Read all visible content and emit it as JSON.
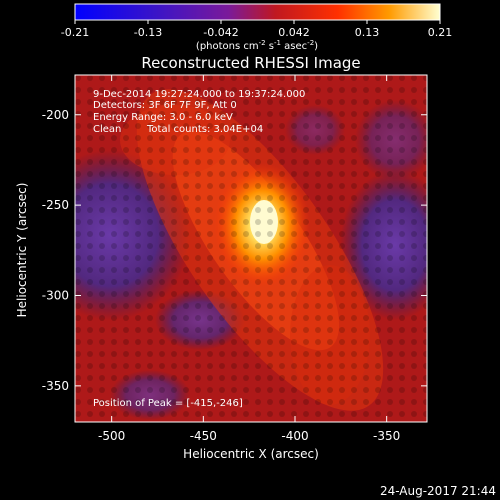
{
  "colorbar": {
    "ticks": [
      "-0.21",
      "-0.13",
      "-0.042",
      "0.042",
      "0.13",
      "0.21"
    ],
    "unit_label": "(photons cm",
    "unit_sup1": "-2",
    "unit_mid": " s",
    "unit_sup2": "-1",
    "unit_end": " asec",
    "unit_sup3": "-2",
    "unit_close": ")",
    "range": [
      -0.21,
      0.21
    ]
  },
  "title": "Reconstructed RHESSI Image",
  "annotations": {
    "time_range": "9-Dec-2014 19:27:24.000 to 19:37:24.000",
    "detectors": "Detectors: 3F 6F 7F 9F, Att 0",
    "energy": "Energy Range: 3.0 - 6.0 keV",
    "clean_label": "Clean",
    "total_counts": "Total counts: 3.04E+04",
    "peak": "Position of Peak = [-415,-246]"
  },
  "axes": {
    "xlabel": "Heliocentric X (arcsec)",
    "ylabel": "Heliocentric Y (arcsec)",
    "xticks": [
      "-500",
      "-450",
      "-400",
      "-350"
    ],
    "xtick_values": [
      -500,
      -450,
      -400,
      -350
    ],
    "yticks": [
      "-200",
      "-250",
      "-300",
      "-350"
    ],
    "ytick_values": [
      -200,
      -250,
      -300,
      -350
    ],
    "xlim": [
      -520,
      -328
    ],
    "ylim": [
      -370,
      -178
    ]
  },
  "footer_date": "24-Aug-2017 21:44",
  "colors": {
    "background": "#000000",
    "axis": "#ffffff",
    "peak_color": "#fffbd0",
    "low_color": "#5a2a8a"
  }
}
